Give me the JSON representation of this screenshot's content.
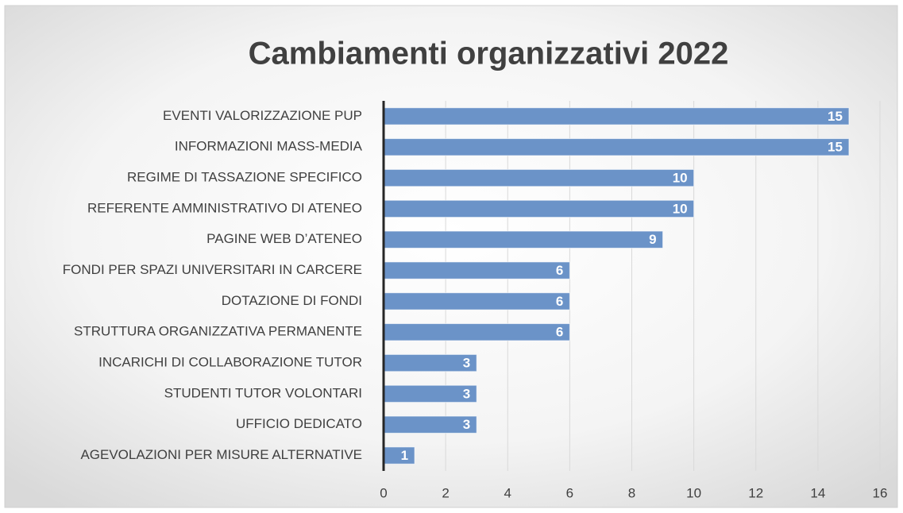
{
  "chart_data": {
    "type": "bar",
    "orientation": "horizontal",
    "title": "Cambiamenti organizzativi 2022",
    "categories": [
      "EVENTI VALORIZZAZIONE PUP",
      "INFORMAZIONI MASS-MEDIA",
      "REGIME DI TASSAZIONE SPECIFICO",
      "REFERENTE AMMINISTRATIVO DI ATENEO",
      "PAGINE WEB D’ATENEO",
      "FONDI PER SPAZI UNIVERSITARI IN CARCERE",
      "DOTAZIONE DI FONDI",
      "STRUTTURA ORGANIZZATIVA PERMANENTE",
      "INCARICHI DI COLLABORAZIONE TUTOR",
      "STUDENTI TUTOR VOLONTARI",
      "UFFICIO DEDICATO",
      "AGEVOLAZIONI PER MISURE ALTERNATIVE"
    ],
    "values": [
      15,
      15,
      10,
      10,
      9,
      6,
      6,
      6,
      3,
      3,
      3,
      1
    ],
    "color": "#6b93c8",
    "xlim": [
      0,
      16
    ],
    "xticks": [
      0,
      2,
      4,
      6,
      8,
      10,
      12,
      14,
      16
    ],
    "grid": true
  }
}
